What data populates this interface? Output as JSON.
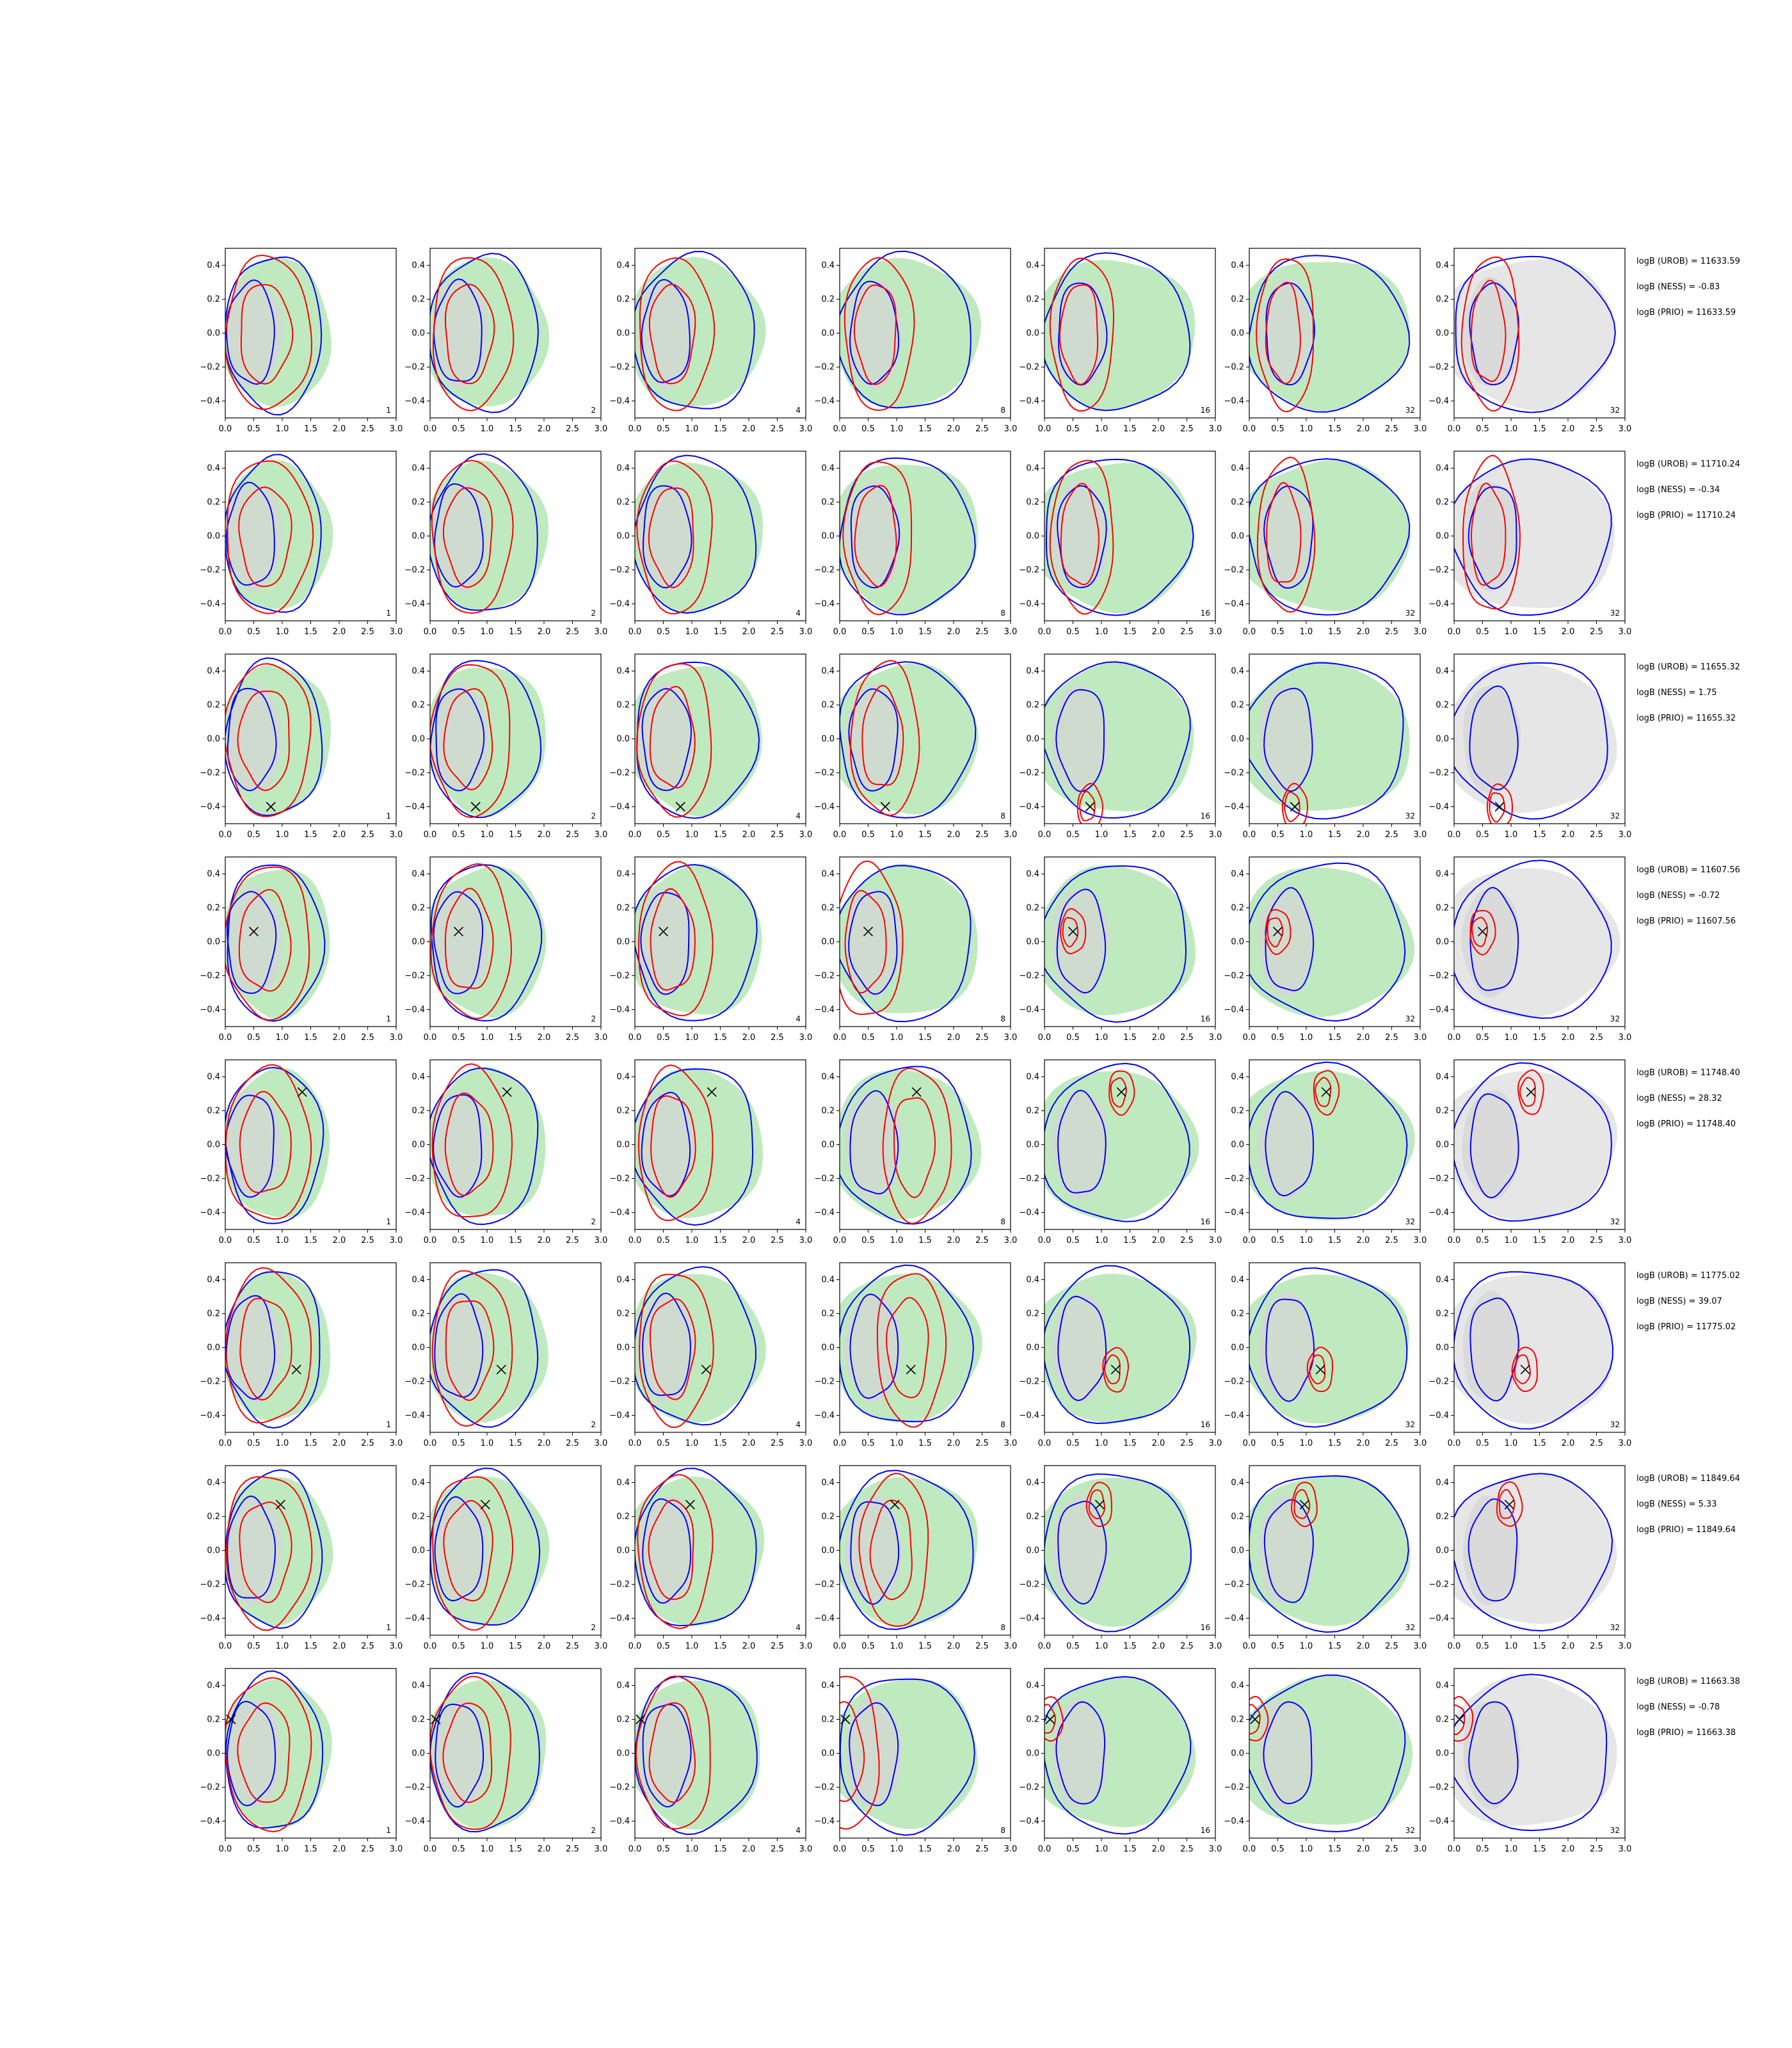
{
  "figure": {
    "rows": 8,
    "cols": 7
  },
  "chart_data": {
    "type": "contour-grid",
    "xlim": [
      0.0,
      3.0
    ],
    "ylim": [
      -0.5,
      0.5
    ],
    "x_ticks": [
      "0.0",
      "0.5",
      "1.0",
      "1.5",
      "2.0",
      "2.5",
      "3.0"
    ],
    "y_ticks": [
      "0.4",
      "0.2",
      "0.0",
      "−0.2",
      "−0.4"
    ],
    "y_tick_values": [
      0.4,
      0.2,
      0.0,
      -0.2,
      -0.4
    ],
    "column_labels": [
      "1",
      "2",
      "4",
      "8",
      "16",
      "32",
      "32"
    ],
    "colors": {
      "green_fill": "#bfeabf",
      "gray_fill": "#d6d6d6",
      "gray_bg_fill": "#e6e6e6",
      "blue_contour": "#0000ff",
      "red_contour": "#ff0000",
      "marker": "#000000"
    },
    "rows": [
      {
        "marker": null,
        "stats": [
          "logB (UROB) = 11633.59",
          "logB (NESS) = -0.83",
          "logB (PRIO) = 11633.59"
        ]
      },
      {
        "marker": null,
        "stats": [
          "logB (UROB) = 11710.24",
          "logB (NESS) = -0.34",
          "logB (PRIO) = 11710.24"
        ]
      },
      {
        "marker": [
          0.8,
          -0.4
        ],
        "stats": [
          "logB (UROB) = 11655.32",
          "logB (NESS) = 1.75",
          "logB (PRIO) = 11655.32"
        ]
      },
      {
        "marker": [
          0.5,
          0.06
        ],
        "stats": [
          "logB (UROB) = 11607.56",
          "logB (NESS) = -0.72",
          "logB (PRIO) = 11607.56"
        ]
      },
      {
        "marker": [
          1.35,
          0.31
        ],
        "stats": [
          "logB (UROB) = 11748.40",
          "logB (NESS) = 28.32",
          "logB (PRIO) = 11748.40"
        ]
      },
      {
        "marker": [
          1.25,
          -0.13
        ],
        "stats": [
          "logB (UROB) = 11775.02",
          "logB (NESS) = 39.07",
          "logB (PRIO) = 11775.02"
        ]
      },
      {
        "marker": [
          0.97,
          0.27
        ],
        "stats": [
          "logB (UROB) = 11849.64",
          "logB (NESS) = 5.33",
          "logB (PRIO) = 11849.64"
        ]
      },
      {
        "marker": [
          0.1,
          0.2
        ],
        "stats": [
          "logB (UROB) = 11663.38",
          "logB (NESS) = -0.78",
          "logB (PRIO) = 11663.38"
        ]
      }
    ]
  }
}
